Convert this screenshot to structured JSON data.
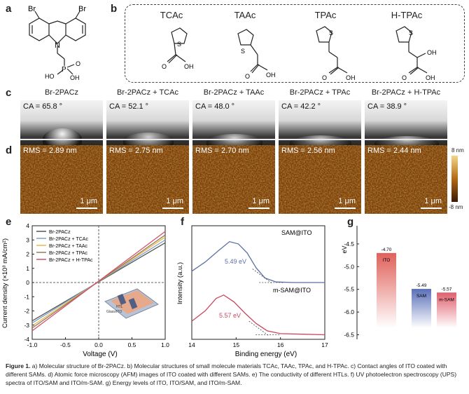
{
  "panel_labels": {
    "a": "a",
    "b": "b",
    "c": "c",
    "d": "d",
    "e": "e",
    "f": "f",
    "g": "g"
  },
  "molecule_a": {
    "substituent_left": "Br",
    "substituent_right": "Br",
    "ring_atom": "N",
    "phosphonic_atoms": [
      "P",
      "HO",
      "OH",
      "O"
    ]
  },
  "molecules_b": [
    {
      "name": "TCAc",
      "atoms": [
        "S",
        "O",
        "OH"
      ]
    },
    {
      "name": "TAAc",
      "atoms": [
        "S",
        "O",
        "OH"
      ]
    },
    {
      "name": "TPAc",
      "atoms": [
        "S",
        "O",
        "OH"
      ]
    },
    {
      "name": "H-TPAc",
      "atoms": [
        "S",
        "OH",
        "O",
        "OH"
      ]
    }
  ],
  "sam_titles": [
    "Br-2PACz",
    "Br-2PACz + TCAc",
    "Br-2PACz + TAAc",
    "Br-2PACz + TPAc",
    "Br-2PACz + H-TPAc"
  ],
  "contact_angles": [
    "CA = 65.8 °",
    "CA = 52.1 °",
    "CA = 48.0 °",
    "CA = 42.2 °",
    "CA = 38.9 °"
  ],
  "afm_rms": [
    "RMS = 2.89 nm",
    "RMS = 2.75 nm",
    "RMS = 2.70 nm",
    "RMS = 2.56 nm",
    "RMS = 2.44 nm"
  ],
  "afm_scale_bar": "1 μm",
  "afm_colorbar": {
    "top": "8 nm",
    "bottom": "-8 nm",
    "colors": [
      "#f4d68a",
      "#b36a12",
      "#3a1a05"
    ]
  },
  "chart_data": [
    {
      "panel": "e",
      "type": "line",
      "xlabel": "Voltage (V)",
      "ylabel": "Current density (×10³ mA/cm²)",
      "xlim": [
        -1.0,
        1.0
      ],
      "ylim": [
        -4,
        4
      ],
      "xticks": [
        "-1.0",
        "-0.5",
        "0.0",
        "0.5",
        "1.0"
      ],
      "yticks": [
        "-4",
        "-3",
        "-2",
        "-1",
        "0",
        "1",
        "2",
        "3",
        "4"
      ],
      "legend_position": "top-left",
      "series": [
        {
          "name": "Br-2PACz",
          "color": "#555555",
          "points": [
            [
              -1.0,
              -2.7
            ],
            [
              1.0,
              2.8
            ]
          ]
        },
        {
          "name": "Br-2PACz + TCAc",
          "color": "#7aa0c8",
          "points": [
            [
              -1.0,
              -2.85
            ],
            [
              1.0,
              3.0
            ]
          ]
        },
        {
          "name": "Br-2PACz + TAAc",
          "color": "#e6b84a",
          "points": [
            [
              -1.0,
              -3.05
            ],
            [
              1.0,
              3.2
            ]
          ]
        },
        {
          "name": "Br-2PACz + TPAc",
          "color": "#9a7a55",
          "points": [
            [
              -1.0,
              -3.2
            ],
            [
              1.0,
              3.35
            ]
          ]
        },
        {
          "name": "Br-2PACz + H-TPAc",
          "color": "#d0506a",
          "points": [
            [
              -1.0,
              -3.4
            ],
            [
              1.0,
              3.6
            ]
          ]
        }
      ],
      "inset_labels": [
        "HTL",
        "Glass/ITO"
      ]
    },
    {
      "panel": "f",
      "type": "line",
      "xlabel": "Binding energy (eV)",
      "ylabel": "Intensity (a.u.)",
      "xlim": [
        14,
        17
      ],
      "xticks": [
        "14",
        "15",
        "16",
        "17"
      ],
      "series": [
        {
          "name": "SAM@ITO",
          "color": "#5c6fa6",
          "points": [
            [
              14.0,
              0.6
            ],
            [
              14.3,
              0.68
            ],
            [
              14.6,
              0.78
            ],
            [
              14.85,
              0.86
            ],
            [
              15.05,
              0.84
            ],
            [
              15.25,
              0.76
            ],
            [
              15.45,
              0.63
            ],
            [
              15.65,
              0.54
            ],
            [
              15.9,
              0.505
            ],
            [
              16.3,
              0.5
            ],
            [
              17.0,
              0.5
            ]
          ],
          "cutoff_label": "5.49 eV",
          "cutoff": 15.72
        },
        {
          "name": "m-SAM@ITO",
          "color": "#c9485f",
          "points": [
            [
              14.0,
              0.16
            ],
            [
              14.3,
              0.25
            ],
            [
              14.55,
              0.36
            ],
            [
              14.72,
              0.39
            ],
            [
              14.95,
              0.33
            ],
            [
              15.2,
              0.23
            ],
            [
              15.45,
              0.14
            ],
            [
              15.7,
              0.075
            ],
            [
              16.0,
              0.05
            ],
            [
              16.5,
              0.045
            ],
            [
              17.0,
              0.04
            ]
          ],
          "cutoff_label": "5.57 eV",
          "cutoff": 15.64
        }
      ]
    },
    {
      "panel": "g",
      "type": "bar",
      "ylabel": "eV",
      "ylim": [
        -6.6,
        -4.1
      ],
      "yticks": [
        "-4.5",
        "-5.0",
        "-5.5",
        "-6.0",
        "-6.5"
      ],
      "categories": [
        "ITO",
        "SAM",
        "m-SAM"
      ],
      "values": [
        -4.7,
        -5.49,
        -5.57
      ],
      "value_labels": [
        "-4.70",
        "-5.49",
        "-5.57"
      ],
      "colors": [
        "#e0615a",
        "#5a6fb8",
        "#e0606e"
      ]
    }
  ],
  "caption": {
    "lead": "Figure 1.",
    "text": " a) Molecular structure of Br-2PACz. b) Molecular structures of small molecule materials TCAc, TAAc, TPAc, and H-TPAc. c) Contact angles of ITO coated with different SAMs. d) Atomic force microscopy (AFM) images of ITO coated with different SAMs. e) The conductivity of different HTLs. f) UV photoelectron spectroscopy (UPS) spectra of ITO/SAM and ITO/m-SAM. g) Energy levels of ITO, ITO/SAM, and ITO/m-SAM."
  }
}
